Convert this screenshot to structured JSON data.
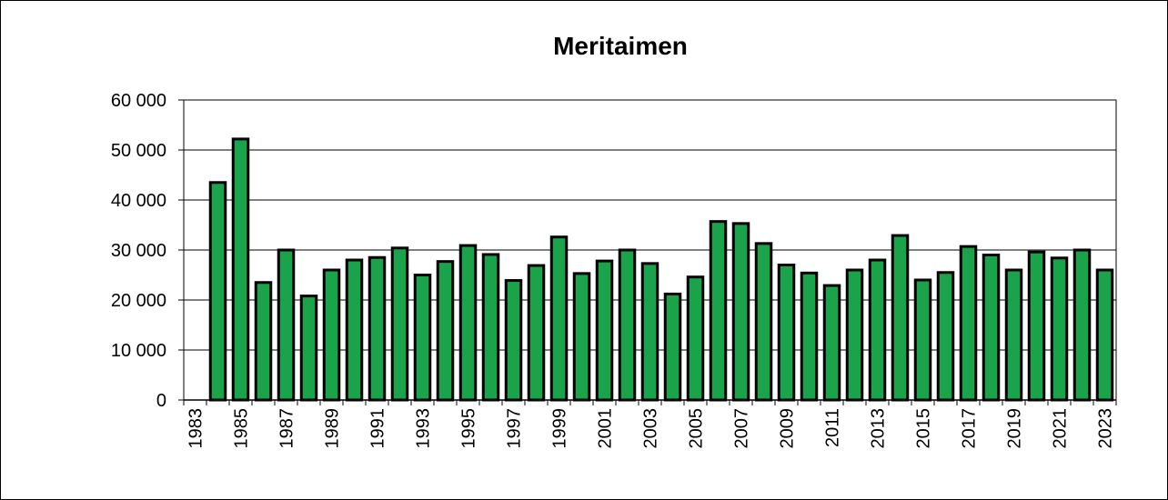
{
  "chart_data": {
    "type": "bar",
    "title": "Meritaimen",
    "xlabel": "",
    "ylabel": "",
    "ylim": [
      0,
      60000
    ],
    "yticks": [
      0,
      10000,
      20000,
      30000,
      40000,
      50000,
      60000
    ],
    "ytick_labels": [
      "0",
      "10 000",
      "20 000",
      "30 000",
      "40 000",
      "50 000",
      "60 000"
    ],
    "xtick_labels": [
      "1983",
      "1985",
      "1987",
      "1989",
      "1991",
      "1993",
      "1995",
      "1997",
      "1999",
      "2001",
      "2003",
      "2005",
      "2007",
      "2009",
      "2011",
      "2013",
      "2015",
      "2017",
      "2019",
      "2021",
      "2023"
    ],
    "categories": [
      "1983",
      "1984",
      "1985",
      "1986",
      "1987",
      "1988",
      "1989",
      "1990",
      "1991",
      "1992",
      "1993",
      "1994",
      "1995",
      "1996",
      "1997",
      "1998",
      "1999",
      "2000",
      "2001",
      "2002",
      "2003",
      "2004",
      "2005",
      "2006",
      "2007",
      "2008",
      "2009",
      "2010",
      "2011",
      "2012",
      "2013",
      "2014",
      "2015",
      "2016",
      "2017",
      "2018",
      "2019",
      "2020",
      "2021",
      "2022",
      "2023"
    ],
    "values": [
      null,
      43500,
      52200,
      23500,
      30000,
      20800,
      26000,
      28000,
      28500,
      30400,
      25000,
      27700,
      30900,
      29100,
      23900,
      26900,
      32600,
      25300,
      27800,
      30000,
      27300,
      21200,
      24600,
      35700,
      35300,
      31300,
      27000,
      25400,
      22900,
      26000,
      28000,
      32900,
      24000,
      25500,
      30700,
      29000,
      26000,
      29600,
      28400,
      30000,
      26000
    ],
    "bar_color": "#1aa34a",
    "bar_edge_color": "#000000",
    "grid": true,
    "legend": false
  }
}
